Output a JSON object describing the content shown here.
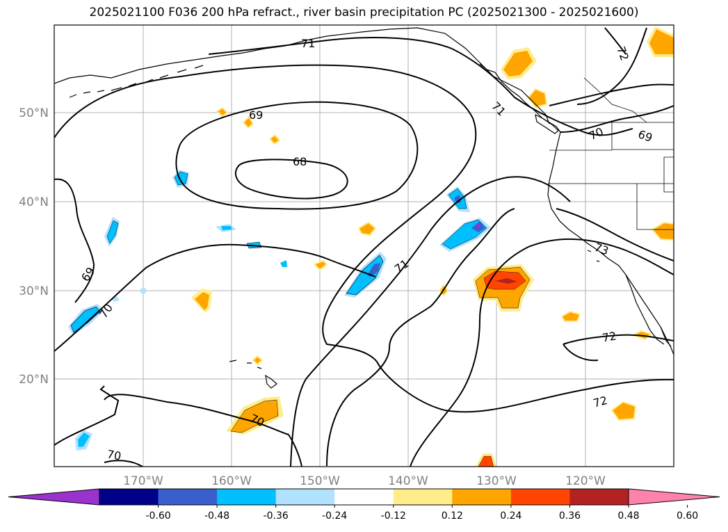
{
  "title": "2025021100 F036 200 hPa refract., river basin precipitation PC (2025021300 - 2025021600)",
  "lat_labels": [
    "50°N",
    "40°N",
    "30°N",
    "20°N"
  ],
  "lon_labels": [
    "170°W",
    "160°W",
    "150°W",
    "140°W",
    "130°W",
    "120°W"
  ],
  "contour_labels": [
    "71",
    "72",
    "69",
    "68",
    "71",
    "70",
    "69",
    "69",
    "70",
    "71",
    "73",
    "72",
    "72",
    "70",
    "70"
  ],
  "colorbar": {
    "ticks": [
      "-0.60",
      "-0.48",
      "-0.36",
      "-0.24",
      "-0.12",
      "0.12",
      "0.24",
      "0.36",
      "0.48",
      "0.60"
    ],
    "colors": [
      "#9a32cd",
      "#00008b",
      "#3a5fcd",
      "#00bfff",
      "#b0e2ff",
      "#ffffff",
      "#ffec8b",
      "#ffa500",
      "#ff4500",
      "#b22222",
      "#ff82ab"
    ]
  }
}
